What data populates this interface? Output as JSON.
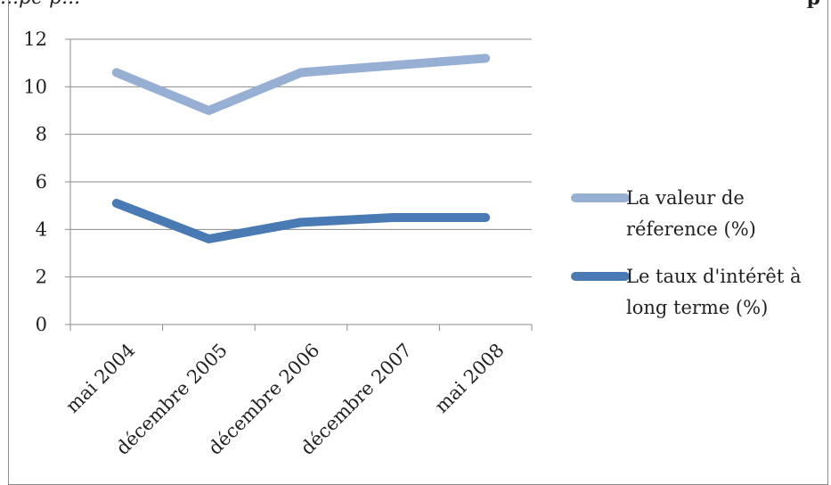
{
  "chart_data": {
    "type": "line",
    "categories": [
      "mai 2004",
      "décembre 2005",
      "décembre 2006",
      "décembre 2007",
      "mai 2008"
    ],
    "series": [
      {
        "name": "La valeur de réference (%)",
        "values": [
          10.6,
          9.0,
          10.6,
          10.9,
          11.2
        ],
        "color": "#98afd4"
      },
      {
        "name": "Le taux d'intérêt à long terme (%)",
        "values": [
          5.1,
          3.6,
          4.3,
          4.5,
          4.5
        ],
        "color": "#4a7ab3"
      }
    ],
    "y_ticks": [
      "0",
      "2",
      "4",
      "6",
      "8",
      "10",
      "12"
    ],
    "ylim": [
      0,
      12
    ],
    "grid": true,
    "legend_position": "right",
    "legend_lines": [
      [
        "La valeur de",
        "réference (%)"
      ],
      [
        "Le taux d'intérêt à",
        "long terme (%)"
      ]
    ]
  },
  "top_strip": {
    "left_text": "...pe p...",
    "right_text": "p"
  }
}
